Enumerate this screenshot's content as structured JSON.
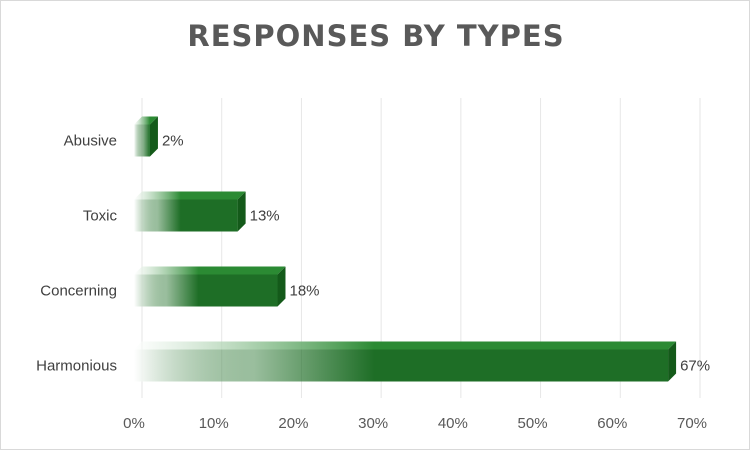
{
  "chart_data": {
    "type": "bar",
    "orientation": "horizontal",
    "title": "RESPONSES BY TYPES",
    "categories": [
      "Abusive",
      "Toxic",
      "Concerning",
      "Harmonious"
    ],
    "values": [
      2,
      13,
      18,
      67
    ],
    "data_labels": [
      "2%",
      "13%",
      "18%",
      "67%"
    ],
    "x_ticks": [
      "0%",
      "10%",
      "20%",
      "30%",
      "40%",
      "50%",
      "60%",
      "70%"
    ],
    "xlim": [
      0,
      70
    ],
    "grid": true,
    "legend": "none",
    "colors": {
      "bar": "#1e6e26",
      "bar_dark": "#145a1a",
      "bar_top": "#2b8a33",
      "grid": "#e6e6e6",
      "text": "#404040"
    }
  }
}
